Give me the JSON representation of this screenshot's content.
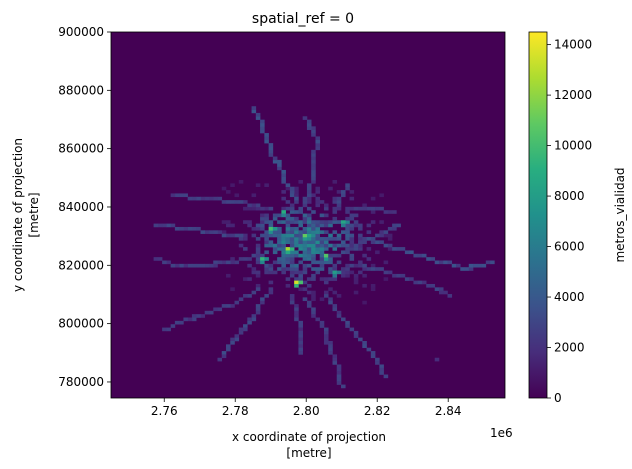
{
  "chart_data": {
    "type": "heatmap",
    "title": "spatial_ref = 0",
    "xlabel": "x coordinate of projection",
    "xlabel_unit": "[metre]",
    "ylabel": "y coordinate of projection",
    "ylabel_unit": "[metre]",
    "x_offset_label": "1e6",
    "xlim": [
      2.745,
      2.856
    ],
    "ylim": [
      774500,
      900000
    ],
    "x_ticks": [
      2.76,
      2.78,
      2.8,
      2.82,
      2.84
    ],
    "x_tick_labels": [
      "2.76",
      "2.78",
      "2.80",
      "2.82",
      "2.84"
    ],
    "y_ticks": [
      780000,
      800000,
      820000,
      840000,
      860000,
      880000,
      900000
    ],
    "y_tick_labels": [
      "780000",
      "800000",
      "820000",
      "840000",
      "860000",
      "880000",
      "900000"
    ],
    "colorbar": {
      "label": "metros_vialidad",
      "colormap": "viridis",
      "range": [
        0,
        14500
      ],
      "ticks": [
        0,
        2000,
        4000,
        6000,
        8000,
        10000,
        12000,
        14000
      ],
      "tick_labels": [
        "0",
        "2000",
        "4000",
        "6000",
        "8000",
        "10000",
        "12000",
        "14000"
      ]
    },
    "background_value": 0,
    "grid": false,
    "center": {
      "x": 2.8,
      "y": 828000
    },
    "hotspots": [
      {
        "x": 2.795,
        "y": 826000,
        "value": 12500
      },
      {
        "x": 2.8,
        "y": 830000,
        "value": 11000
      },
      {
        "x": 2.79,
        "y": 832000,
        "value": 10000
      },
      {
        "x": 2.805,
        "y": 823000,
        "value": 10500
      },
      {
        "x": 2.797,
        "y": 814000,
        "value": 13500
      },
      {
        "x": 2.788,
        "y": 822000,
        "value": 9500
      },
      {
        "x": 2.81,
        "y": 835000,
        "value": 8500
      },
      {
        "x": 2.793,
        "y": 838000,
        "value": 9000
      },
      {
        "x": 2.808,
        "y": 818000,
        "value": 8000
      }
    ],
    "roads": [
      {
        "value": 3200,
        "points": [
          [
            2.797,
            842000
          ],
          [
            2.793,
            852000
          ],
          [
            2.789,
            862000
          ],
          [
            2.787,
            870000
          ],
          [
            2.785,
            874000
          ]
        ]
      },
      {
        "value": 2800,
        "points": [
          [
            2.8,
            842000
          ],
          [
            2.802,
            852000
          ],
          [
            2.803,
            864000
          ],
          [
            2.8,
            870000
          ]
        ]
      },
      {
        "value": 3000,
        "points": [
          [
            2.815,
            830000
          ],
          [
            2.825,
            826000
          ],
          [
            2.835,
            822000
          ],
          [
            2.845,
            819000
          ],
          [
            2.852,
            821000
          ]
        ]
      },
      {
        "value": 2500,
        "points": [
          [
            2.816,
            820000
          ],
          [
            2.825,
            817000
          ],
          [
            2.835,
            813000
          ],
          [
            2.84,
            810000
          ]
        ]
      },
      {
        "value": 2600,
        "points": [
          [
            2.805,
            810000
          ],
          [
            2.81,
            802000
          ],
          [
            2.815,
            795000
          ],
          [
            2.82,
            788000
          ],
          [
            2.822,
            782000
          ]
        ]
      },
      {
        "value": 2400,
        "points": [
          [
            2.8,
            808000
          ],
          [
            2.805,
            798000
          ],
          [
            2.808,
            788000
          ],
          [
            2.81,
            779000
          ]
        ]
      },
      {
        "value": 2700,
        "points": [
          [
            2.79,
            812000
          ],
          [
            2.785,
            802000
          ],
          [
            2.78,
            795000
          ],
          [
            2.776,
            788000
          ]
        ]
      },
      {
        "value": 2300,
        "points": [
          [
            2.787,
            812000
          ],
          [
            2.778,
            806000
          ],
          [
            2.768,
            802000
          ],
          [
            2.76,
            798000
          ]
        ]
      },
      {
        "value": 2600,
        "points": [
          [
            2.782,
            830000
          ],
          [
            2.77,
            832000
          ],
          [
            2.758,
            834000
          ]
        ]
      },
      {
        "value": 2500,
        "points": [
          [
            2.784,
            822000
          ],
          [
            2.772,
            820000
          ],
          [
            2.763,
            820000
          ],
          [
            2.758,
            822000
          ]
        ]
      },
      {
        "value": 2400,
        "points": [
          [
            2.788,
            840000
          ],
          [
            2.78,
            842000
          ],
          [
            2.77,
            843000
          ],
          [
            2.763,
            844000
          ]
        ]
      },
      {
        "value": 2200,
        "points": [
          [
            2.812,
            840000
          ],
          [
            2.818,
            840000
          ],
          [
            2.825,
            838000
          ]
        ]
      },
      {
        "value": 2500,
        "points": [
          [
            2.812,
            826000
          ],
          [
            2.82,
            830000
          ],
          [
            2.826,
            834000
          ]
        ]
      },
      {
        "value": 2300,
        "points": [
          [
            2.796,
            810000
          ],
          [
            2.798,
            800000
          ],
          [
            2.799,
            790000
          ]
        ]
      },
      {
        "value": 2600,
        "points": [
          [
            2.808,
            838000
          ],
          [
            2.81,
            844000
          ],
          [
            2.812,
            847000
          ]
        ]
      }
    ],
    "isolated_cells": [
      {
        "x": 2.837,
        "y": 788000,
        "value": 1800
      }
    ]
  }
}
